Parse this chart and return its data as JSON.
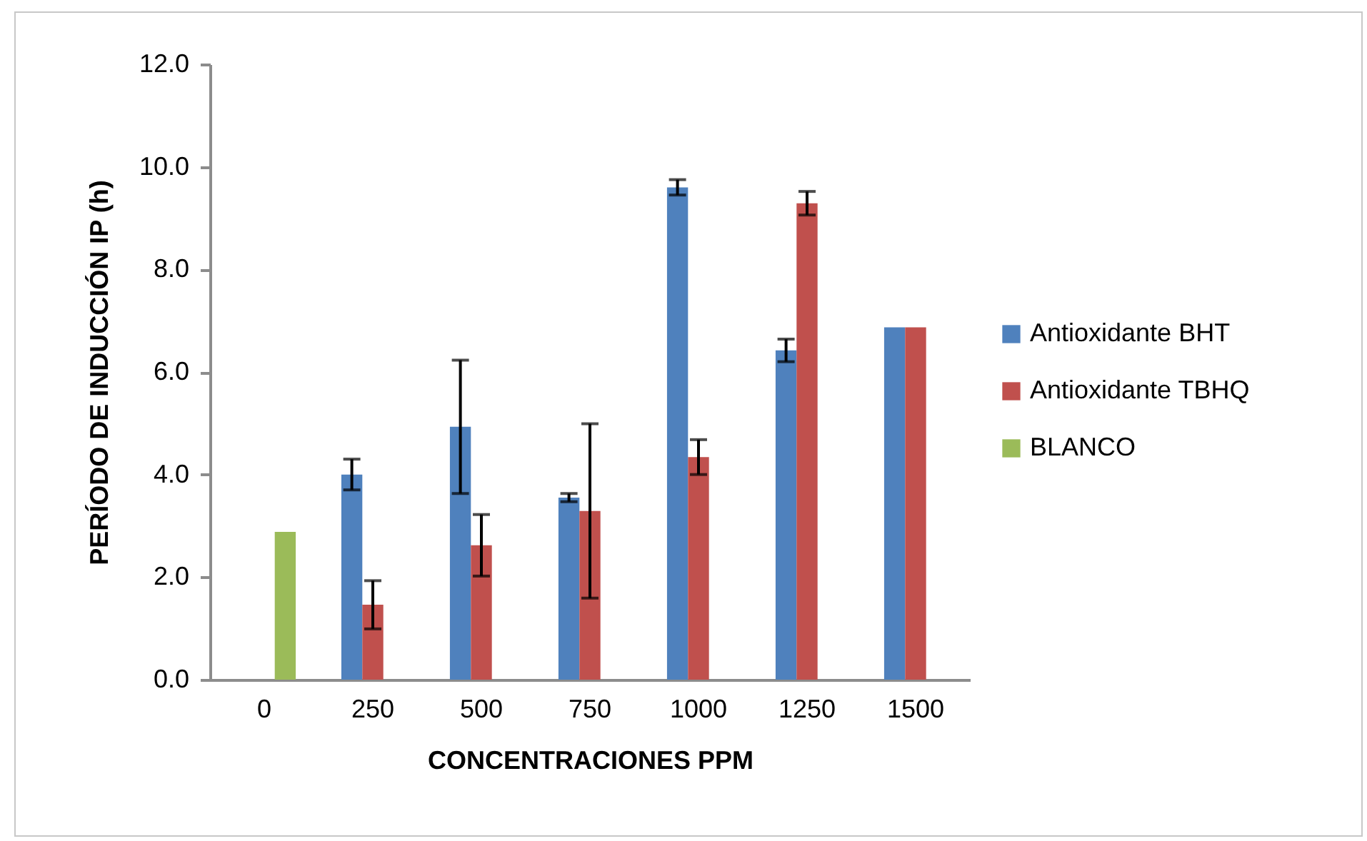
{
  "chart_data": {
    "type": "bar",
    "xlabel": "CONCENTRACIONES PPM",
    "ylabel": "PERÍODO DE INDUCCIÓN IP (h)",
    "categories": [
      "0",
      "250",
      "500",
      "750",
      "1000",
      "1250",
      "1500"
    ],
    "series": [
      {
        "name": "Antioxidante BHT",
        "color": "#4f81bd",
        "values": [
          null,
          4.0,
          4.93,
          3.55,
          9.6,
          6.42,
          6.87
        ],
        "errors": [
          null,
          0.3,
          1.3,
          0.08,
          0.15,
          0.22,
          null
        ]
      },
      {
        "name": "Antioxidante TBHQ",
        "color": "#c0504d",
        "values": [
          null,
          1.46,
          2.62,
          3.29,
          4.34,
          9.29,
          6.87
        ],
        "errors": [
          null,
          0.47,
          0.6,
          1.7,
          0.34,
          0.23,
          null
        ]
      },
      {
        "name": "BLANCO",
        "color": "#9bbb59",
        "values": [
          2.88,
          null,
          null,
          null,
          null,
          null,
          null
        ]
      }
    ],
    "ylim": [
      0,
      12
    ],
    "yticks": [
      {
        "value": 0,
        "label": "0.0"
      },
      {
        "value": 2,
        "label": "2.0"
      },
      {
        "value": 4,
        "label": "4.0"
      },
      {
        "value": 6,
        "label": "6.0"
      },
      {
        "value": 8,
        "label": "8.0"
      },
      {
        "value": 10,
        "label": "10.0"
      },
      {
        "value": 12,
        "label": "12.0"
      }
    ],
    "legend": "right",
    "grid": false
  }
}
